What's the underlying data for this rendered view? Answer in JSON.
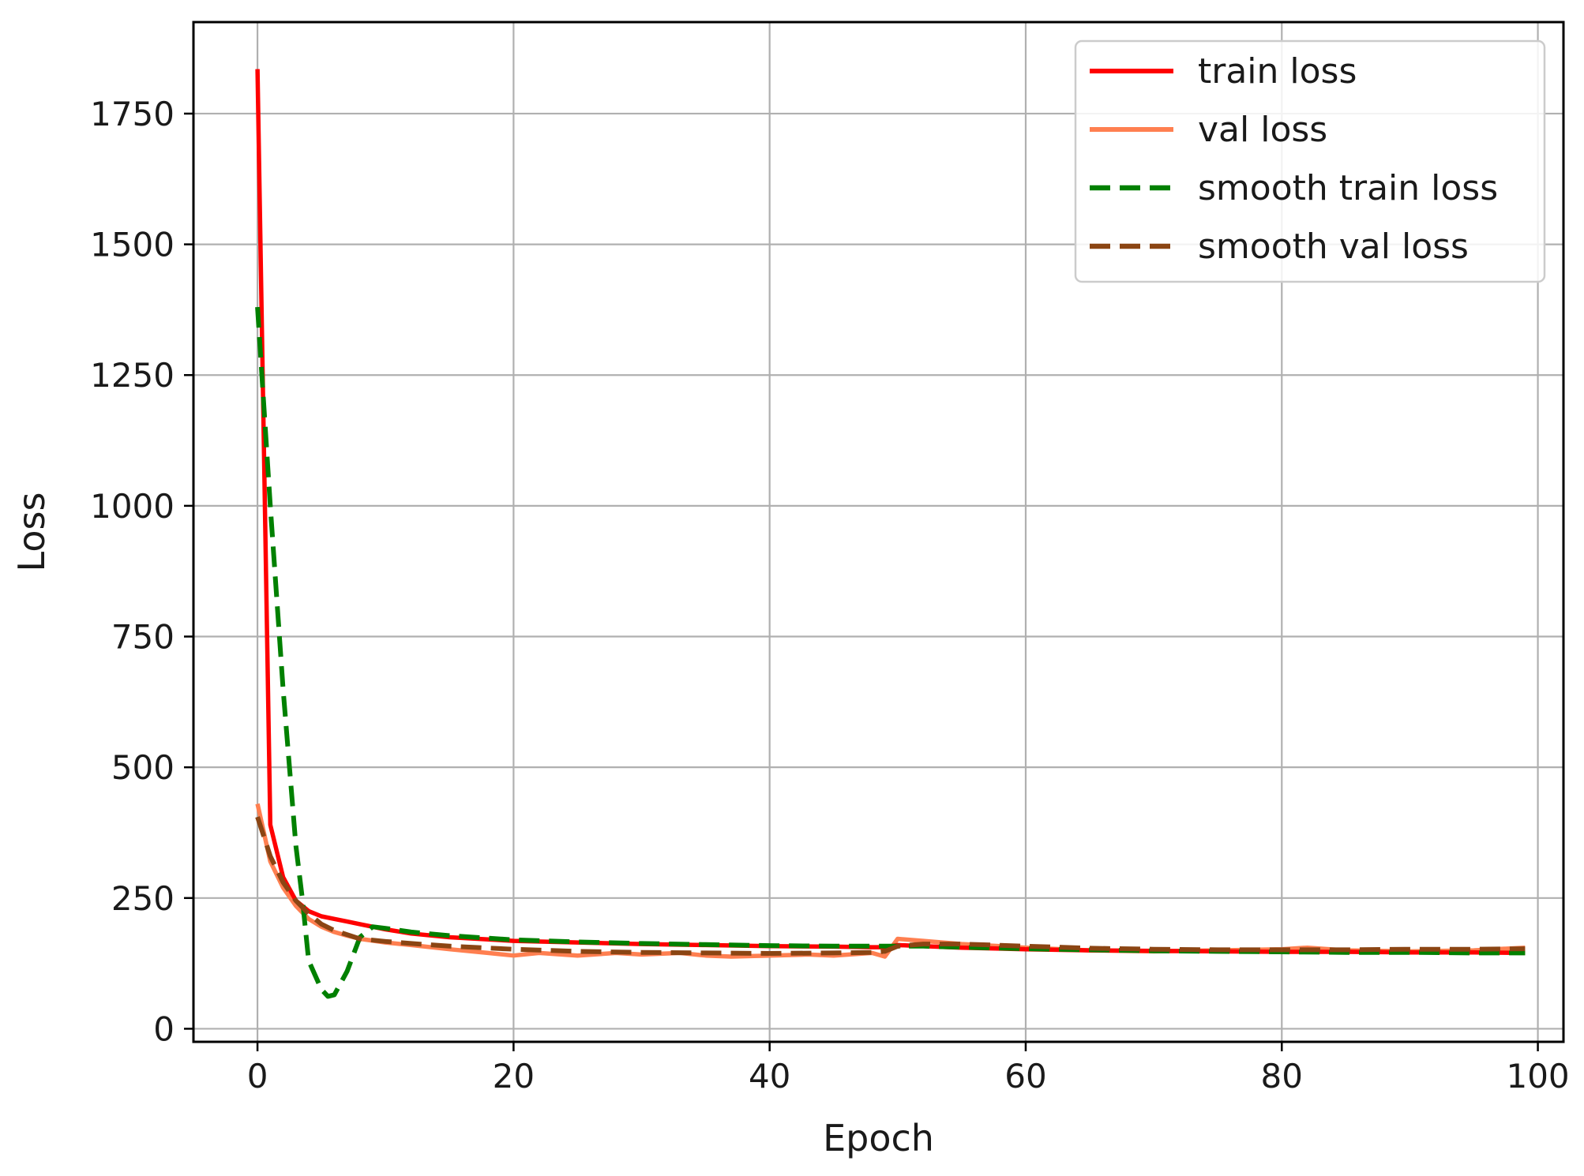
{
  "chart_data": {
    "type": "line",
    "title": "",
    "xlabel": "Epoch",
    "ylabel": "Loss",
    "xlim": [
      -5,
      102
    ],
    "ylim": [
      -25,
      1925
    ],
    "xticks": [
      0,
      20,
      40,
      60,
      80,
      100
    ],
    "yticks": [
      0,
      250,
      500,
      750,
      1000,
      1250,
      1500,
      1750
    ],
    "grid": true,
    "legend_position": "top-right",
    "series": [
      {
        "name": "train loss",
        "color": "#ff0000",
        "style": "solid",
        "x": [
          0,
          1,
          2,
          3,
          4,
          5,
          6,
          7,
          8,
          10,
          12,
          15,
          20,
          25,
          30,
          35,
          40,
          45,
          48,
          49,
          50,
          52,
          55,
          60,
          65,
          70,
          75,
          80,
          85,
          90,
          95,
          99
        ],
        "y": [
          1835,
          390,
          290,
          245,
          225,
          215,
          210,
          205,
          200,
          190,
          182,
          175,
          168,
          165,
          162,
          160,
          158,
          157,
          156,
          156,
          160,
          158,
          155,
          152,
          150,
          149,
          148,
          147,
          147,
          146,
          146,
          145
        ]
      },
      {
        "name": "val loss",
        "color": "#ff7f50",
        "style": "solid",
        "x": [
          0,
          1,
          2,
          3,
          4,
          5,
          6,
          7,
          8,
          10,
          12,
          15,
          18,
          20,
          22,
          25,
          28,
          30,
          33,
          35,
          37,
          40,
          43,
          45,
          48,
          49,
          50,
          52,
          55,
          58,
          60,
          65,
          70,
          75,
          80,
          82,
          85,
          90,
          95,
          99
        ],
        "y": [
          430,
          320,
          270,
          235,
          210,
          195,
          185,
          178,
          172,
          165,
          160,
          152,
          145,
          140,
          145,
          140,
          145,
          142,
          145,
          140,
          138,
          140,
          142,
          140,
          145,
          138,
          172,
          168,
          162,
          158,
          155,
          150,
          148,
          150,
          152,
          155,
          150,
          148,
          150,
          155
        ]
      },
      {
        "name": "smooth train loss",
        "color": "#008000",
        "style": "dashed",
        "x": [
          0,
          1,
          2,
          3,
          3.5,
          4,
          5,
          5.5,
          6,
          7,
          8,
          9,
          10,
          12,
          15,
          20,
          25,
          30,
          35,
          40,
          45,
          49,
          52,
          55,
          60,
          65,
          70,
          75,
          80,
          85,
          90,
          95,
          99
        ],
        "y": [
          1380,
          1000,
          650,
          350,
          250,
          130,
          75,
          62,
          65,
          110,
          175,
          195,
          192,
          185,
          178,
          170,
          166,
          163,
          161,
          159,
          158,
          158,
          158,
          156,
          153,
          151,
          149,
          148,
          147,
          146,
          146,
          145,
          145
        ]
      },
      {
        "name": "smooth val loss",
        "color": "#8b4513",
        "style": "dashed",
        "x": [
          0,
          1,
          2,
          3,
          4,
          5,
          6,
          7,
          8,
          10,
          12,
          15,
          20,
          25,
          30,
          35,
          40,
          45,
          48,
          49,
          50,
          52,
          55,
          60,
          65,
          70,
          75,
          80,
          85,
          90,
          95,
          99
        ],
        "y": [
          405,
          330,
          280,
          245,
          220,
          200,
          188,
          180,
          172,
          167,
          163,
          158,
          152,
          148,
          146,
          145,
          144,
          145,
          146,
          148,
          158,
          162,
          162,
          158,
          154,
          152,
          151,
          151,
          151,
          152,
          152,
          153
        ]
      }
    ]
  }
}
